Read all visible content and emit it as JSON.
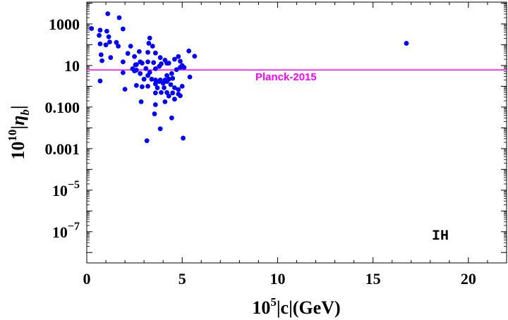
{
  "chart_data": {
    "type": "scatter",
    "xlabel": "10^5|c|(GeV)",
    "ylabel": "10^10|η_b|",
    "xlim": [
      0,
      22
    ],
    "ylim_log10": [
      -8.5,
      4.05
    ],
    "x_ticks": [
      {
        "value": 0,
        "label": "0"
      },
      {
        "value": 5,
        "label": "5"
      },
      {
        "value": 10,
        "label": "10"
      },
      {
        "value": 15,
        "label": "15"
      },
      {
        "value": 20,
        "label": "20"
      }
    ],
    "y_ticks": [
      {
        "log10": 3,
        "label": "1000",
        "base": "",
        "exp": ""
      },
      {
        "log10": 1,
        "label": "10",
        "base": "",
        "exp": ""
      },
      {
        "log10": -1,
        "label": "0.100",
        "base": "",
        "exp": ""
      },
      {
        "log10": -3,
        "label": "0.001",
        "base": "",
        "exp": ""
      },
      {
        "log10": -5,
        "label": "",
        "base": "10",
        "exp": "−5"
      },
      {
        "log10": -7,
        "label": "",
        "base": "10",
        "exp": "−7"
      }
    ],
    "reference_line": {
      "y": 6.1,
      "label": "Planck-2015",
      "color": "#ff00ff"
    },
    "annotation": "IH",
    "series": [
      {
        "name": "points",
        "color": "#0000ff",
        "points": [
          [
            1.1,
            3090
          ],
          [
            1.7,
            1995
          ],
          [
            0.25,
            603
          ],
          [
            0.7,
            501
          ],
          [
            1.05,
            447
          ],
          [
            1.9,
            575
          ],
          [
            0.65,
            282
          ],
          [
            1.15,
            240
          ],
          [
            0.7,
            110
          ],
          [
            1.2,
            135
          ],
          [
            1.55,
            129
          ],
          [
            1.0,
            98
          ],
          [
            1.65,
            85
          ],
          [
            2.3,
            85
          ],
          [
            2.15,
            38
          ],
          [
            2.75,
            47
          ],
          [
            3.3,
            209
          ],
          [
            3.25,
            117
          ],
          [
            3.45,
            85
          ],
          [
            2.5,
            27
          ],
          [
            0.75,
            33
          ],
          [
            1.25,
            24
          ],
          [
            1.9,
            15
          ],
          [
            0.8,
            17
          ],
          [
            1.9,
            4.5
          ],
          [
            2.55,
            10.7
          ],
          [
            3.3,
            4.7
          ],
          [
            4.2,
            12.9
          ],
          [
            5.35,
            50
          ],
          [
            5.65,
            28
          ],
          [
            3.2,
            43
          ],
          [
            3.6,
            40
          ],
          [
            3.85,
            24
          ],
          [
            3.2,
            15
          ],
          [
            3.5,
            13.8
          ],
          [
            0.7,
            1.8
          ],
          [
            2.0,
            0.72
          ],
          [
            2.8,
            15
          ],
          [
            2.6,
            11
          ],
          [
            2.4,
            7
          ],
          [
            2.6,
            6
          ],
          [
            2.9,
            13
          ],
          [
            3.1,
            7.1
          ],
          [
            3.6,
            7
          ],
          [
            3.8,
            9.1
          ],
          [
            3.9,
            12
          ],
          [
            4.1,
            18
          ],
          [
            4.3,
            13
          ],
          [
            4.6,
            20
          ],
          [
            4.8,
            27
          ],
          [
            4.9,
            16
          ],
          [
            5.0,
            10
          ],
          [
            5.1,
            8
          ],
          [
            5.4,
            2.8
          ],
          [
            4.2,
            3.3
          ],
          [
            4.45,
            4.1
          ],
          [
            4.7,
            6.3
          ],
          [
            4.9,
            8.2
          ],
          [
            2.5,
            5.5
          ],
          [
            2.8,
            4.1
          ],
          [
            3.0,
            2.2
          ],
          [
            3.2,
            3.3
          ],
          [
            3.4,
            2.2
          ],
          [
            3.6,
            1.3
          ],
          [
            3.8,
            1.7
          ],
          [
            4.0,
            1.4
          ],
          [
            4.2,
            1.7
          ],
          [
            4.4,
            1.2
          ],
          [
            4.6,
            0.85
          ],
          [
            4.8,
            0.7
          ],
          [
            5.0,
            1.0
          ],
          [
            2.6,
            1.1
          ],
          [
            2.9,
            0.95
          ],
          [
            3.2,
            1.0
          ],
          [
            3.6,
            0.48
          ],
          [
            3.9,
            0.5
          ],
          [
            4.2,
            0.5
          ],
          [
            4.5,
            0.48
          ],
          [
            4.8,
            0.42
          ],
          [
            3.7,
            0.84
          ],
          [
            4.05,
            0.85
          ],
          [
            4.3,
            0.34
          ],
          [
            4.6,
            0.24
          ],
          [
            4.9,
            0.35
          ],
          [
            3.6,
            2.0
          ],
          [
            3.85,
            2.0
          ],
          [
            4.1,
            2.0
          ],
          [
            4.3,
            2.2
          ],
          [
            4.5,
            2.4
          ],
          [
            4.1,
            0.18
          ],
          [
            2.85,
            0.18
          ],
          [
            3.6,
            0.13
          ],
          [
            3.55,
            0.047
          ],
          [
            4.45,
            0.03
          ],
          [
            3.85,
            0.009
          ],
          [
            3.15,
            0.0024
          ],
          [
            5.05,
            0.0032
          ],
          [
            16.75,
            117
          ]
        ]
      }
    ]
  }
}
